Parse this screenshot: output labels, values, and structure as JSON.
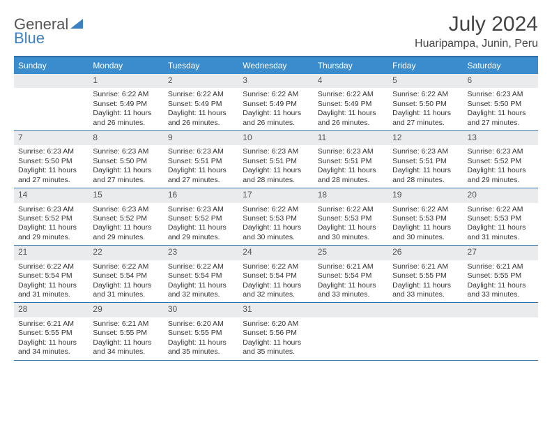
{
  "logo": {
    "text_dark": "General",
    "text_blue": "Blue"
  },
  "title": "July 2024",
  "location": "Huaripampa, Junin, Peru",
  "colors": {
    "header_bg": "#3b8ccc",
    "header_text": "#ffffff",
    "border": "#2e6fa8",
    "date_bar_bg": "#e9ebed",
    "date_bar_text": "#555555",
    "body_text": "#333333",
    "background": "#ffffff",
    "logo_dark": "#555555",
    "logo_blue": "#3b7fc4"
  },
  "typography": {
    "title_fontsize": 30,
    "location_fontsize": 16,
    "dayheader_fontsize": 12,
    "date_fontsize": 12,
    "cell_fontsize": 10.5
  },
  "day_names": [
    "Sunday",
    "Monday",
    "Tuesday",
    "Wednesday",
    "Thursday",
    "Friday",
    "Saturday"
  ],
  "weeks": [
    [
      null,
      {
        "date": "1",
        "sunrise": "Sunrise: 6:22 AM",
        "sunset": "Sunset: 5:49 PM",
        "d1": "Daylight: 11 hours",
        "d2": "and 26 minutes."
      },
      {
        "date": "2",
        "sunrise": "Sunrise: 6:22 AM",
        "sunset": "Sunset: 5:49 PM",
        "d1": "Daylight: 11 hours",
        "d2": "and 26 minutes."
      },
      {
        "date": "3",
        "sunrise": "Sunrise: 6:22 AM",
        "sunset": "Sunset: 5:49 PM",
        "d1": "Daylight: 11 hours",
        "d2": "and 26 minutes."
      },
      {
        "date": "4",
        "sunrise": "Sunrise: 6:22 AM",
        "sunset": "Sunset: 5:49 PM",
        "d1": "Daylight: 11 hours",
        "d2": "and 26 minutes."
      },
      {
        "date": "5",
        "sunrise": "Sunrise: 6:22 AM",
        "sunset": "Sunset: 5:50 PM",
        "d1": "Daylight: 11 hours",
        "d2": "and 27 minutes."
      },
      {
        "date": "6",
        "sunrise": "Sunrise: 6:23 AM",
        "sunset": "Sunset: 5:50 PM",
        "d1": "Daylight: 11 hours",
        "d2": "and 27 minutes."
      }
    ],
    [
      {
        "date": "7",
        "sunrise": "Sunrise: 6:23 AM",
        "sunset": "Sunset: 5:50 PM",
        "d1": "Daylight: 11 hours",
        "d2": "and 27 minutes."
      },
      {
        "date": "8",
        "sunrise": "Sunrise: 6:23 AM",
        "sunset": "Sunset: 5:50 PM",
        "d1": "Daylight: 11 hours",
        "d2": "and 27 minutes."
      },
      {
        "date": "9",
        "sunrise": "Sunrise: 6:23 AM",
        "sunset": "Sunset: 5:51 PM",
        "d1": "Daylight: 11 hours",
        "d2": "and 27 minutes."
      },
      {
        "date": "10",
        "sunrise": "Sunrise: 6:23 AM",
        "sunset": "Sunset: 5:51 PM",
        "d1": "Daylight: 11 hours",
        "d2": "and 28 minutes."
      },
      {
        "date": "11",
        "sunrise": "Sunrise: 6:23 AM",
        "sunset": "Sunset: 5:51 PM",
        "d1": "Daylight: 11 hours",
        "d2": "and 28 minutes."
      },
      {
        "date": "12",
        "sunrise": "Sunrise: 6:23 AM",
        "sunset": "Sunset: 5:51 PM",
        "d1": "Daylight: 11 hours",
        "d2": "and 28 minutes."
      },
      {
        "date": "13",
        "sunrise": "Sunrise: 6:23 AM",
        "sunset": "Sunset: 5:52 PM",
        "d1": "Daylight: 11 hours",
        "d2": "and 29 minutes."
      }
    ],
    [
      {
        "date": "14",
        "sunrise": "Sunrise: 6:23 AM",
        "sunset": "Sunset: 5:52 PM",
        "d1": "Daylight: 11 hours",
        "d2": "and 29 minutes."
      },
      {
        "date": "15",
        "sunrise": "Sunrise: 6:23 AM",
        "sunset": "Sunset: 5:52 PM",
        "d1": "Daylight: 11 hours",
        "d2": "and 29 minutes."
      },
      {
        "date": "16",
        "sunrise": "Sunrise: 6:23 AM",
        "sunset": "Sunset: 5:52 PM",
        "d1": "Daylight: 11 hours",
        "d2": "and 29 minutes."
      },
      {
        "date": "17",
        "sunrise": "Sunrise: 6:22 AM",
        "sunset": "Sunset: 5:53 PM",
        "d1": "Daylight: 11 hours",
        "d2": "and 30 minutes."
      },
      {
        "date": "18",
        "sunrise": "Sunrise: 6:22 AM",
        "sunset": "Sunset: 5:53 PM",
        "d1": "Daylight: 11 hours",
        "d2": "and 30 minutes."
      },
      {
        "date": "19",
        "sunrise": "Sunrise: 6:22 AM",
        "sunset": "Sunset: 5:53 PM",
        "d1": "Daylight: 11 hours",
        "d2": "and 30 minutes."
      },
      {
        "date": "20",
        "sunrise": "Sunrise: 6:22 AM",
        "sunset": "Sunset: 5:53 PM",
        "d1": "Daylight: 11 hours",
        "d2": "and 31 minutes."
      }
    ],
    [
      {
        "date": "21",
        "sunrise": "Sunrise: 6:22 AM",
        "sunset": "Sunset: 5:54 PM",
        "d1": "Daylight: 11 hours",
        "d2": "and 31 minutes."
      },
      {
        "date": "22",
        "sunrise": "Sunrise: 6:22 AM",
        "sunset": "Sunset: 5:54 PM",
        "d1": "Daylight: 11 hours",
        "d2": "and 31 minutes."
      },
      {
        "date": "23",
        "sunrise": "Sunrise: 6:22 AM",
        "sunset": "Sunset: 5:54 PM",
        "d1": "Daylight: 11 hours",
        "d2": "and 32 minutes."
      },
      {
        "date": "24",
        "sunrise": "Sunrise: 6:22 AM",
        "sunset": "Sunset: 5:54 PM",
        "d1": "Daylight: 11 hours",
        "d2": "and 32 minutes."
      },
      {
        "date": "25",
        "sunrise": "Sunrise: 6:21 AM",
        "sunset": "Sunset: 5:54 PM",
        "d1": "Daylight: 11 hours",
        "d2": "and 33 minutes."
      },
      {
        "date": "26",
        "sunrise": "Sunrise: 6:21 AM",
        "sunset": "Sunset: 5:55 PM",
        "d1": "Daylight: 11 hours",
        "d2": "and 33 minutes."
      },
      {
        "date": "27",
        "sunrise": "Sunrise: 6:21 AM",
        "sunset": "Sunset: 5:55 PM",
        "d1": "Daylight: 11 hours",
        "d2": "and 33 minutes."
      }
    ],
    [
      {
        "date": "28",
        "sunrise": "Sunrise: 6:21 AM",
        "sunset": "Sunset: 5:55 PM",
        "d1": "Daylight: 11 hours",
        "d2": "and 34 minutes."
      },
      {
        "date": "29",
        "sunrise": "Sunrise: 6:21 AM",
        "sunset": "Sunset: 5:55 PM",
        "d1": "Daylight: 11 hours",
        "d2": "and 34 minutes."
      },
      {
        "date": "30",
        "sunrise": "Sunrise: 6:20 AM",
        "sunset": "Sunset: 5:55 PM",
        "d1": "Daylight: 11 hours",
        "d2": "and 35 minutes."
      },
      {
        "date": "31",
        "sunrise": "Sunrise: 6:20 AM",
        "sunset": "Sunset: 5:56 PM",
        "d1": "Daylight: 11 hours",
        "d2": "and 35 minutes."
      },
      null,
      null,
      null
    ]
  ]
}
